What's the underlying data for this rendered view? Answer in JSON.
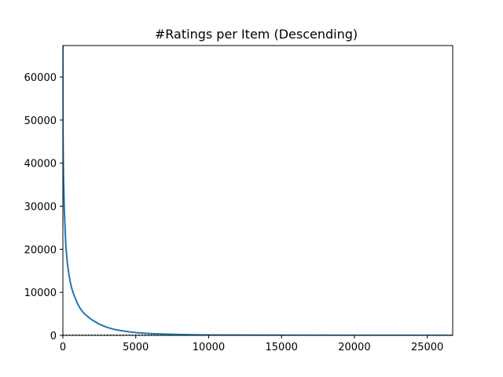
{
  "chart_data": {
    "type": "line",
    "title": "#Ratings per Item (Descending)",
    "xlabel": "",
    "ylabel": "",
    "xlim": [
      0,
      26744
    ],
    "ylim": [
      0,
      67310
    ],
    "xticks": [
      0,
      5000,
      10000,
      15000,
      20000,
      25000
    ],
    "xtick_labels": [
      "0",
      "5000",
      "10000",
      "15000",
      "20000",
      "25000"
    ],
    "yticks": [
      0,
      10000,
      20000,
      30000,
      40000,
      50000,
      60000
    ],
    "ytick_labels": [
      "0",
      "10000",
      "20000",
      "30000",
      "40000",
      "50000",
      "60000"
    ],
    "grid": false,
    "legend": "none",
    "series": [
      {
        "color": "#1f77b4",
        "points": [
          [
            0,
            67310
          ],
          [
            5,
            52000
          ],
          [
            10,
            47000
          ],
          [
            25,
            41000
          ],
          [
            50,
            36000
          ],
          [
            75,
            33000
          ],
          [
            100,
            29000
          ],
          [
            150,
            25000
          ],
          [
            200,
            21000
          ],
          [
            300,
            17000
          ],
          [
            400,
            14500
          ],
          [
            500,
            12500
          ],
          [
            600,
            11000
          ],
          [
            700,
            10000
          ],
          [
            800,
            9000
          ],
          [
            900,
            8300
          ],
          [
            1000,
            7400
          ],
          [
            1200,
            6200
          ],
          [
            1400,
            5300
          ],
          [
            1600,
            4700
          ],
          [
            1800,
            4100
          ],
          [
            2000,
            3600
          ],
          [
            2500,
            2600
          ],
          [
            3000,
            1900
          ],
          [
            3500,
            1400
          ],
          [
            4000,
            1100
          ],
          [
            4500,
            850
          ],
          [
            5000,
            650
          ],
          [
            6000,
            420
          ],
          [
            7000,
            290
          ],
          [
            8000,
            200
          ],
          [
            9000,
            140
          ],
          [
            10000,
            100
          ],
          [
            12000,
            60
          ],
          [
            14000,
            38
          ],
          [
            16000,
            25
          ],
          [
            18000,
            16
          ],
          [
            20000,
            11
          ],
          [
            22000,
            7
          ],
          [
            24000,
            4
          ],
          [
            26744,
            1
          ]
        ]
      }
    ],
    "reference_line": {
      "y": 0,
      "style": "dotted",
      "color": "#000000"
    }
  }
}
